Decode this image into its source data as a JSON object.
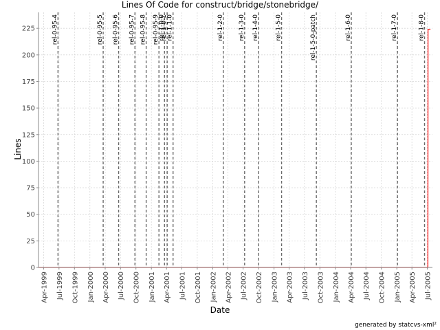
{
  "chart_data": {
    "type": "line",
    "title": "Lines Of Code for construct/bridge/stonebridge/",
    "xlabel": "Date",
    "ylabel": "Lines",
    "ylim": [
      0,
      240
    ],
    "yticks": [
      0,
      25,
      50,
      75,
      100,
      125,
      150,
      175,
      200,
      225
    ],
    "xlim": [
      "1999-03-01",
      "2005-08-01"
    ],
    "xticks": [
      {
        "date": "1999-04-01",
        "label": "Apr-1999"
      },
      {
        "date": "1999-07-01",
        "label": "Jul-1999"
      },
      {
        "date": "1999-10-01",
        "label": "Oct-1999"
      },
      {
        "date": "2000-01-01",
        "label": "Jan-2000"
      },
      {
        "date": "2000-04-01",
        "label": "Apr-2000"
      },
      {
        "date": "2000-07-01",
        "label": "Jul-2000"
      },
      {
        "date": "2000-10-01",
        "label": "Oct-2000"
      },
      {
        "date": "2001-01-01",
        "label": "Jan-2001"
      },
      {
        "date": "2001-04-01",
        "label": "Apr-2001"
      },
      {
        "date": "2001-07-01",
        "label": "Jul-2001"
      },
      {
        "date": "2001-10-01",
        "label": "Oct-2001"
      },
      {
        "date": "2002-01-01",
        "label": "Jan-2002"
      },
      {
        "date": "2002-04-01",
        "label": "Apr-2002"
      },
      {
        "date": "2002-07-01",
        "label": "Jul-2002"
      },
      {
        "date": "2002-10-01",
        "label": "Oct-2002"
      },
      {
        "date": "2003-01-01",
        "label": "Jan-2003"
      },
      {
        "date": "2003-04-01",
        "label": "Apr-2003"
      },
      {
        "date": "2003-07-01",
        "label": "Jul-2003"
      },
      {
        "date": "2003-10-01",
        "label": "Oct-2003"
      },
      {
        "date": "2004-01-01",
        "label": "Jan-2004"
      },
      {
        "date": "2004-04-01",
        "label": "Apr-2004"
      },
      {
        "date": "2004-07-01",
        "label": "Jul-2004"
      },
      {
        "date": "2004-10-01",
        "label": "Oct-2004"
      },
      {
        "date": "2005-01-01",
        "label": "Jan-2005"
      },
      {
        "date": "2005-04-01",
        "label": "Apr-2005"
      },
      {
        "date": "2005-07-01",
        "label": "Jul-2005"
      }
    ],
    "grid": true,
    "series": [
      {
        "color": "#ff0000",
        "points": [
          {
            "x": "1999-03-01",
            "y": 0
          },
          {
            "x": "2005-07-05",
            "y": 0
          },
          {
            "x": "2005-07-06",
            "y": 224
          },
          {
            "x": "2005-07-20",
            "y": 224
          }
        ]
      }
    ],
    "markers": [
      {
        "label": "rel-0-95-4",
        "date": "1999-06-25"
      },
      {
        "label": "rel-0-95-5",
        "date": "2000-03-20"
      },
      {
        "label": "rel-0-95-6",
        "date": "2000-06-20"
      },
      {
        "label": "rel-0-95-7",
        "date": "2000-09-25"
      },
      {
        "label": "rel-0-95-8",
        "date": "2000-12-01"
      },
      {
        "label": "rel-0-95-9",
        "date": "2001-02-15"
      },
      {
        "label": "rel-1-0-0",
        "date": "2001-03-20"
      },
      {
        "label": "rel-1-0-1",
        "date": "2001-04-05"
      },
      {
        "label": "rel-1-1-0",
        "date": "2001-05-10"
      },
      {
        "label": "rel-1-2-0",
        "date": "2002-03-05"
      },
      {
        "label": "rel-1-3-0",
        "date": "2002-07-10"
      },
      {
        "label": "rel-1-4-0",
        "date": "2002-10-01"
      },
      {
        "label": "rel-1-5-0",
        "date": "2003-02-15"
      },
      {
        "label": "rel-1-5-0-patch",
        "date": "2003-09-10"
      },
      {
        "label": "rel-1-6-0",
        "date": "2004-04-05"
      },
      {
        "label": "rel-1-7-0",
        "date": "2005-01-05"
      },
      {
        "label": "rel-1-8-0",
        "date": "2005-06-15"
      }
    ],
    "footer": "generated by statcvs-xml²"
  }
}
